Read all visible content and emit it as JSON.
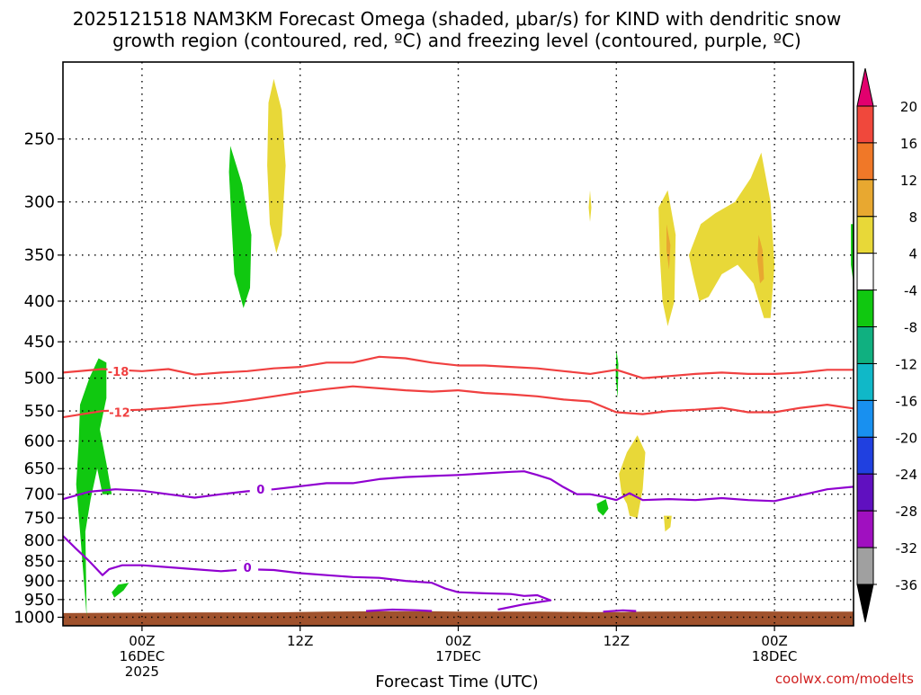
{
  "chart_data": {
    "type": "heatmap",
    "title_lines": [
      "2025121518 NAM3KM Forecast Omega (shaded, μbar/s) for KIND with dendritic snow",
      "growth region (contoured, red, ºC) and freezing level (contoured, purple, ºC)"
    ],
    "xlabel": "Forecast Time (UTC)",
    "ylabel": "",
    "credit": "coolwx.com/modelts",
    "y_scale": "log",
    "y_range_hPa": [
      1025,
      200
    ],
    "x_range_hours": [
      0,
      60
    ],
    "y_ticks": [
      250,
      300,
      350,
      400,
      450,
      500,
      550,
      600,
      650,
      700,
      750,
      800,
      850,
      900,
      950,
      1000
    ],
    "x_ticks": [
      {
        "hour": 6,
        "lines": [
          "00Z",
          "16DEC",
          "2025"
        ]
      },
      {
        "hour": 18,
        "lines": [
          "12Z"
        ]
      },
      {
        "hour": 30,
        "lines": [
          "00Z",
          "17DEC"
        ]
      },
      {
        "hour": 42,
        "lines": [
          "12Z"
        ]
      },
      {
        "hour": 54,
        "lines": [
          "00Z",
          "18DEC"
        ]
      }
    ],
    "grid": "dotted",
    "colorbar": {
      "labels": [
        "20",
        "16",
        "12",
        "8",
        "4",
        "-4",
        "-8",
        "-12",
        "-16",
        "-20",
        "-24",
        "-28",
        "-32",
        "-36"
      ],
      "colors": [
        "#e2006e",
        "#f0483c",
        "#f07828",
        "#e8a830",
        "#e8d838",
        "#ffffff",
        "#10c810",
        "#10b080",
        "#10b8c8",
        "#1890f0",
        "#2040e0",
        "#6010c0",
        "#a010c0",
        "#a0a0a0",
        "#000000"
      ]
    },
    "contour_colors": {
      "dgz": "#f04040",
      "freezing": "#9000d0",
      "ground": "#a0522d"
    },
    "omega_regions": [
      {
        "color": "#10c810",
        "points": [
          [
            1.8,
            1000
          ],
          [
            1.3,
            780
          ],
          [
            1.0,
            680
          ],
          [
            1.2,
            600
          ],
          [
            1.3,
            540
          ],
          [
            2.0,
            500
          ],
          [
            2.7,
            472
          ],
          [
            3.3,
            478
          ],
          [
            3.3,
            530
          ],
          [
            2.8,
            580
          ],
          [
            3.3,
            640
          ],
          [
            3.7,
            700
          ],
          [
            3.0,
            700
          ],
          [
            2.6,
            650
          ],
          [
            2.1,
            710
          ],
          [
            1.7,
            780
          ],
          [
            1.8,
            1000
          ]
        ]
      },
      {
        "color": "#10c810",
        "points": [
          [
            3.7,
            930
          ],
          [
            4.2,
            910
          ],
          [
            5.0,
            905
          ],
          [
            4.6,
            925
          ],
          [
            3.9,
            945
          ]
        ]
      },
      {
        "color": "#10c810",
        "points": [
          [
            12.7,
            255
          ],
          [
            13.6,
            285
          ],
          [
            14.3,
            330
          ],
          [
            14.2,
            385
          ],
          [
            13.7,
            408
          ],
          [
            13.0,
            370
          ],
          [
            12.8,
            320
          ],
          [
            12.6,
            275
          ]
        ]
      },
      {
        "color": "#e8d838",
        "points": [
          [
            16.0,
            210
          ],
          [
            16.6,
            230
          ],
          [
            16.9,
            270
          ],
          [
            16.6,
            330
          ],
          [
            16.2,
            348
          ],
          [
            15.7,
            320
          ],
          [
            15.5,
            270
          ],
          [
            15.6,
            225
          ]
        ]
      },
      {
        "color": "#e8d838",
        "points": [
          [
            40.0,
            290
          ],
          [
            40.1,
            305
          ],
          [
            40.0,
            318
          ],
          [
            39.9,
            305
          ]
        ]
      },
      {
        "color": "#10c810",
        "points": [
          [
            42.0,
            460
          ],
          [
            42.15,
            480
          ],
          [
            42.1,
            530
          ],
          [
            41.95,
            500
          ]
        ]
      },
      {
        "color": "#e8d838",
        "points": [
          [
            42.2,
            660
          ],
          [
            42.8,
            620
          ],
          [
            43.6,
            590
          ],
          [
            44.2,
            620
          ],
          [
            44.0,
            690
          ],
          [
            43.6,
            750
          ],
          [
            43.0,
            745
          ],
          [
            42.8,
            720
          ],
          [
            42.4,
            700
          ]
        ]
      },
      {
        "color": "#10c810",
        "points": [
          [
            40.5,
            720
          ],
          [
            41.2,
            710
          ],
          [
            41.4,
            730
          ],
          [
            41.0,
            745
          ],
          [
            40.6,
            735
          ]
        ]
      },
      {
        "color": "#e8d838",
        "points": [
          [
            45.6,
            745
          ],
          [
            46.2,
            745
          ],
          [
            46.1,
            770
          ],
          [
            45.7,
            780
          ]
        ]
      },
      {
        "color": "#e8d838",
        "points": [
          [
            45.2,
            305
          ],
          [
            45.9,
            290
          ],
          [
            46.5,
            330
          ],
          [
            46.4,
            400
          ],
          [
            45.9,
            430
          ],
          [
            45.5,
            400
          ],
          [
            45.3,
            350
          ]
        ]
      },
      {
        "color": "#e8a830",
        "points": [
          [
            45.8,
            320
          ],
          [
            46.1,
            340
          ],
          [
            46.0,
            365
          ],
          [
            45.8,
            345
          ]
        ]
      },
      {
        "color": "#e8d838",
        "points": [
          [
            47.5,
            350
          ],
          [
            48.4,
            320
          ],
          [
            49.5,
            310
          ],
          [
            51.0,
            300
          ],
          [
            52.2,
            280
          ],
          [
            53.0,
            260
          ],
          [
            53.7,
            300
          ],
          [
            54.0,
            360
          ],
          [
            53.7,
            420
          ],
          [
            53.2,
            420
          ],
          [
            52.4,
            380
          ],
          [
            51.2,
            360
          ],
          [
            50.0,
            370
          ],
          [
            49.0,
            395
          ],
          [
            48.3,
            400
          ],
          [
            47.8,
            370
          ]
        ]
      },
      {
        "color": "#e8a830",
        "points": [
          [
            52.8,
            330
          ],
          [
            53.1,
            345
          ],
          [
            53.2,
            375
          ],
          [
            52.9,
            380
          ],
          [
            52.7,
            355
          ]
        ]
      },
      {
        "color": "#10c810",
        "points": [
          [
            59.8,
            320
          ],
          [
            60,
            320
          ],
          [
            60,
            380
          ],
          [
            59.8,
            360
          ]
        ]
      }
    ],
    "dgz_contours": [
      {
        "label": "-18",
        "label_at": [
          4.2,
          490
        ],
        "points": [
          [
            0,
            492
          ],
          [
            3,
            487
          ],
          [
            6,
            490
          ],
          [
            8,
            487
          ],
          [
            10,
            495
          ],
          [
            12,
            492
          ],
          [
            14,
            490
          ],
          [
            16,
            486
          ],
          [
            18,
            484
          ],
          [
            20,
            478
          ],
          [
            22,
            478
          ],
          [
            24,
            470
          ],
          [
            26,
            472
          ],
          [
            28,
            478
          ],
          [
            30,
            482
          ],
          [
            32,
            482
          ],
          [
            34,
            484
          ],
          [
            36,
            486
          ],
          [
            38,
            490
          ],
          [
            40,
            494
          ],
          [
            42,
            488
          ],
          [
            44,
            500
          ],
          [
            46,
            497
          ],
          [
            48,
            494
          ],
          [
            50,
            492
          ],
          [
            52,
            494
          ],
          [
            54,
            494
          ],
          [
            56,
            492
          ],
          [
            58,
            488
          ],
          [
            60,
            488
          ]
        ]
      },
      {
        "label": "-12",
        "label_at": [
          4.3,
          552
        ],
        "points": [
          [
            0,
            560
          ],
          [
            3,
            550
          ],
          [
            6,
            548
          ],
          [
            8,
            545
          ],
          [
            10,
            541
          ],
          [
            12,
            538
          ],
          [
            14,
            533
          ],
          [
            16,
            527
          ],
          [
            18,
            521
          ],
          [
            20,
            516
          ],
          [
            22,
            512
          ],
          [
            24,
            515
          ],
          [
            26,
            518
          ],
          [
            28,
            520
          ],
          [
            30,
            518
          ],
          [
            32,
            522
          ],
          [
            34,
            524
          ],
          [
            36,
            527
          ],
          [
            38,
            532
          ],
          [
            40,
            535
          ],
          [
            42,
            552
          ],
          [
            44,
            555
          ],
          [
            46,
            550
          ],
          [
            48,
            548
          ],
          [
            50,
            545
          ],
          [
            52,
            552
          ],
          [
            54,
            552
          ],
          [
            56,
            545
          ],
          [
            58,
            540
          ],
          [
            60,
            546
          ]
        ]
      }
    ],
    "freezing_contours": [
      {
        "label": "0",
        "label_at": [
          15.0,
          690
        ],
        "points": [
          [
            0,
            710
          ],
          [
            2,
            695
          ],
          [
            4,
            690
          ],
          [
            6,
            693
          ],
          [
            8,
            700
          ],
          [
            10,
            707
          ],
          [
            12,
            700
          ],
          [
            14,
            694
          ],
          [
            16,
            690
          ],
          [
            18,
            684
          ],
          [
            20,
            678
          ],
          [
            22,
            678
          ],
          [
            24,
            670
          ],
          [
            26,
            666
          ],
          [
            28,
            664
          ],
          [
            30,
            662
          ],
          [
            32,
            659
          ],
          [
            34,
            656
          ],
          [
            35,
            655
          ],
          [
            36,
            662
          ],
          [
            37,
            670
          ],
          [
            38,
            686
          ],
          [
            39,
            700
          ],
          [
            40,
            700
          ],
          [
            41,
            705
          ],
          [
            42,
            712
          ],
          [
            43,
            698
          ],
          [
            44,
            712
          ],
          [
            46,
            710
          ],
          [
            48,
            712
          ],
          [
            50,
            708
          ],
          [
            52,
            712
          ],
          [
            54,
            714
          ],
          [
            56,
            702
          ],
          [
            58,
            690
          ],
          [
            60,
            685
          ]
        ]
      },
      {
        "label": "0",
        "label_at": [
          14.0,
          865
        ],
        "points": [
          [
            0,
            790
          ],
          [
            1,
            820
          ],
          [
            2,
            850
          ],
          [
            3,
            885
          ],
          [
            3.5,
            870
          ],
          [
            4.5,
            860
          ],
          [
            6,
            860
          ],
          [
            8,
            865
          ],
          [
            10,
            870
          ],
          [
            12,
            875
          ],
          [
            14,
            870
          ],
          [
            16,
            872
          ],
          [
            18,
            880
          ],
          [
            20,
            885
          ],
          [
            22,
            890
          ],
          [
            24,
            892
          ],
          [
            26,
            900
          ],
          [
            28,
            905
          ],
          [
            29,
            920
          ],
          [
            30,
            930
          ],
          [
            32,
            933
          ],
          [
            34,
            935
          ],
          [
            35,
            940
          ],
          [
            36,
            938
          ],
          [
            37,
            952
          ],
          [
            35,
            963
          ],
          [
            33,
            978
          ]
        ]
      },
      {
        "label": "",
        "label_at": [
          0,
          0
        ],
        "points": [
          [
            23,
            982
          ],
          [
            25,
            978
          ],
          [
            27,
            980
          ],
          [
            28,
            982
          ]
        ]
      },
      {
        "label": "",
        "label_at": [
          0,
          0
        ],
        "points": [
          [
            41,
            984
          ],
          [
            42.5,
            980
          ],
          [
            43.5,
            982
          ]
        ]
      }
    ],
    "ground_levels": [
      [
        0,
        988
      ],
      [
        4,
        987
      ],
      [
        10,
        986
      ],
      [
        16,
        986
      ],
      [
        20,
        984
      ],
      [
        24,
        983
      ],
      [
        28,
        983
      ],
      [
        30,
        984
      ],
      [
        36,
        984
      ],
      [
        40,
        985
      ],
      [
        42,
        985
      ],
      [
        44,
        984
      ],
      [
        50,
        983
      ],
      [
        56,
        984
      ],
      [
        60,
        984
      ]
    ]
  }
}
